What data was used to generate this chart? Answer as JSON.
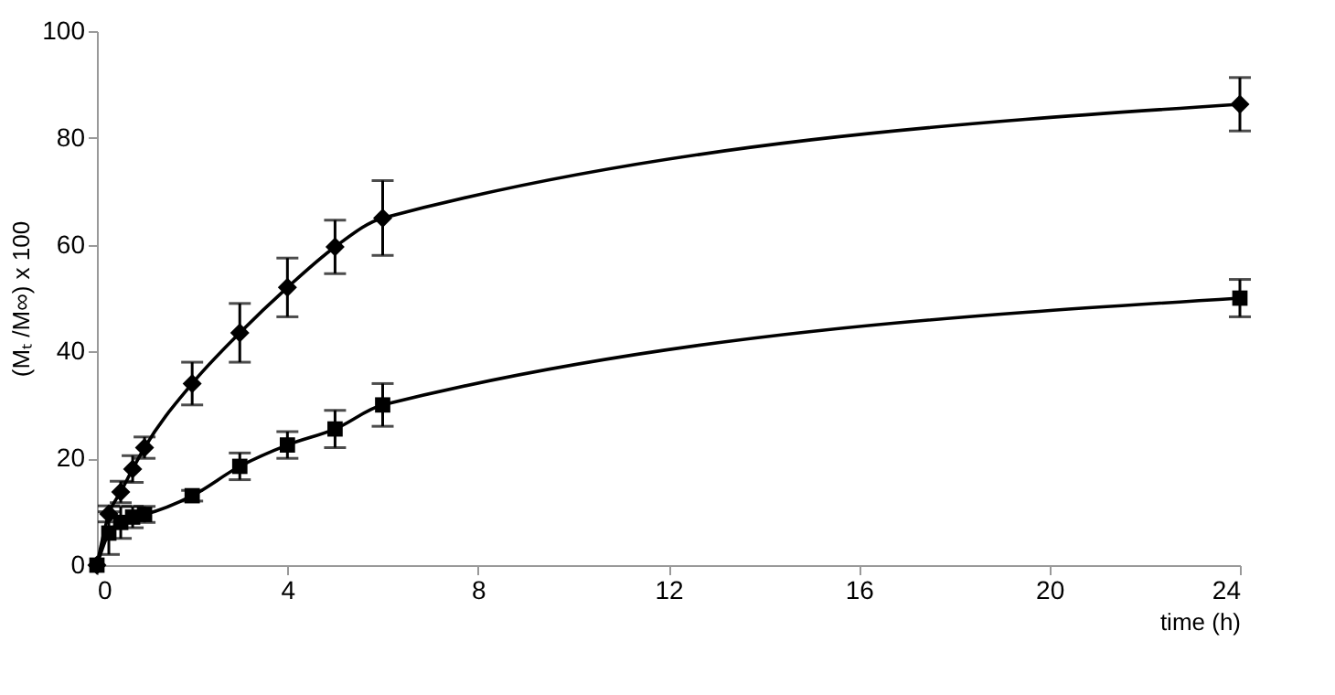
{
  "chart_data": {
    "type": "line",
    "xlabel": "time (h)",
    "ylabel": "(Mₜ /M∞) x 100",
    "xlim": [
      0,
      24
    ],
    "xticks": [
      0,
      4,
      8,
      12,
      16,
      20,
      24
    ],
    "ylim": [
      0,
      100
    ],
    "yticks": [
      0,
      20,
      40,
      60,
      80,
      100
    ],
    "line_style": "solid",
    "series": [
      {
        "color": "#000000",
        "marker": "diamond",
        "x": [
          0,
          0.25,
          0.5,
          0.75,
          1,
          2,
          3,
          4,
          5,
          6,
          24
        ],
        "values": [
          0,
          9.6,
          13.7,
          18,
          22,
          34,
          43.5,
          52,
          59.6,
          65,
          86.3
        ],
        "errors": [
          null,
          1.5,
          2,
          2.5,
          2,
          4,
          5.5,
          5.5,
          5,
          7,
          5
        ]
      },
      {
        "color": "#000000",
        "marker": "square",
        "x": [
          0,
          0.25,
          0.5,
          0.75,
          1,
          2,
          3,
          4,
          5,
          6,
          24
        ],
        "values": [
          0,
          6,
          8,
          9,
          9.5,
          13,
          18.5,
          22.5,
          25.5,
          30,
          50
        ],
        "errors": [
          null,
          4,
          3,
          2,
          1.5,
          1,
          2.5,
          2.5,
          3.5,
          4,
          3.5
        ]
      }
    ]
  }
}
